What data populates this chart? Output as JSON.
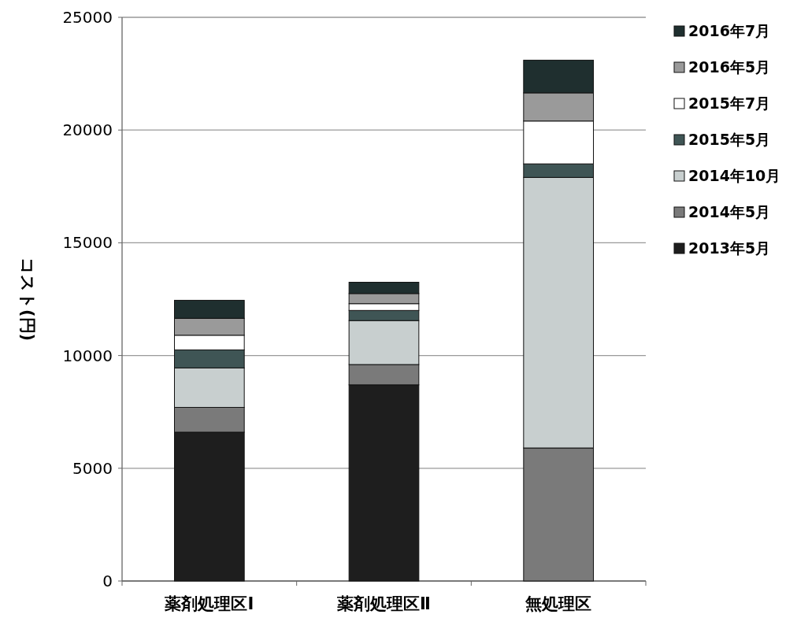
{
  "chart_data": {
    "type": "bar",
    "stacked": true,
    "ylabel": "コスト(円)",
    "categories": [
      "薬剤処理区Ⅰ",
      "薬剤処理区Ⅱ",
      "無処理区"
    ],
    "ylim": [
      0,
      25000
    ],
    "yticks": [
      0,
      5000,
      10000,
      15000,
      20000,
      25000
    ],
    "grid": "y",
    "legend": "right",
    "series": [
      {
        "name": "2013年5月",
        "color": "#1e1e1e",
        "values": [
          6600,
          8700,
          0
        ]
      },
      {
        "name": "2014年5月",
        "color": "#7a7a7a",
        "values": [
          1100,
          900,
          5900
        ]
      },
      {
        "name": "2014年10月",
        "color": "#c8cfcf",
        "values": [
          1750,
          1950,
          12000
        ]
      },
      {
        "name": "2015年5月",
        "color": "#3f5555",
        "values": [
          800,
          450,
          600
        ]
      },
      {
        "name": "2015年7月",
        "color": "#ffffff",
        "values": [
          650,
          300,
          1900
        ]
      },
      {
        "name": "2016年5月",
        "color": "#9a9a9a",
        "values": [
          750,
          450,
          1250
        ]
      },
      {
        "name": "2016年7月",
        "color": "#1f2f2f",
        "values": [
          800,
          500,
          1450
        ]
      }
    ]
  }
}
